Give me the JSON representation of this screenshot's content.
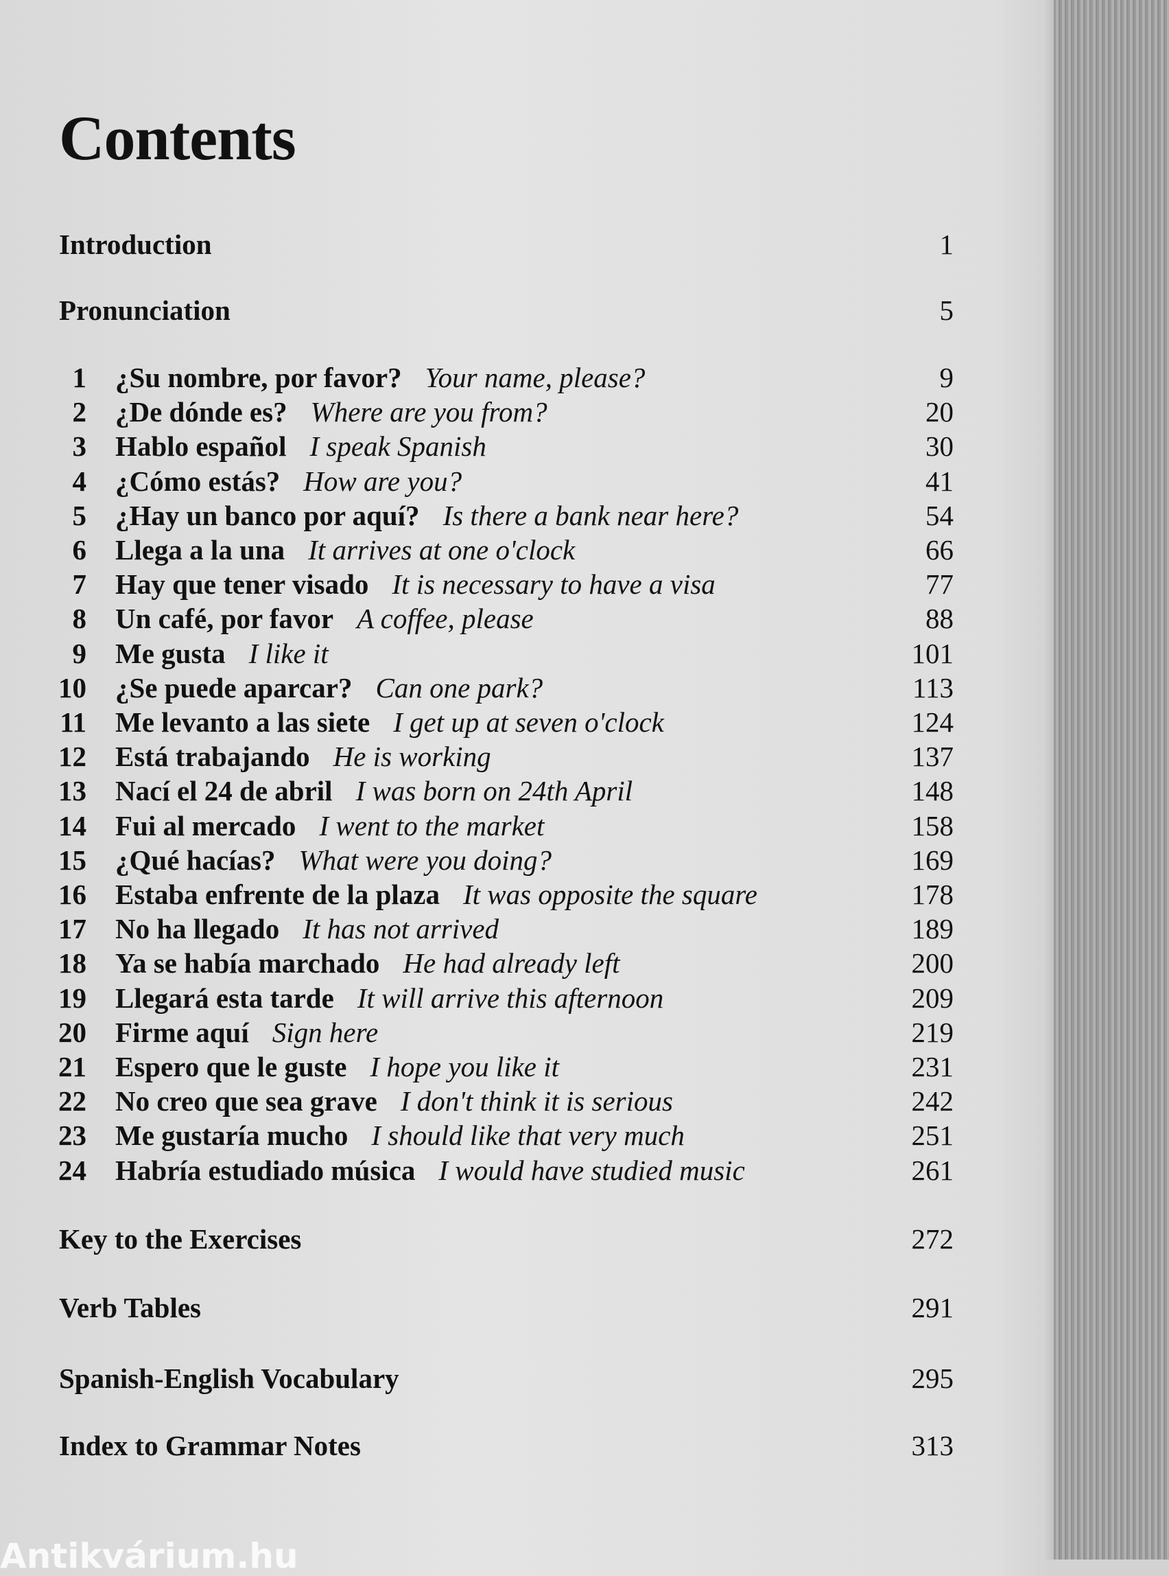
{
  "title": "Contents",
  "front_sections": [
    {
      "label": "Introduction",
      "page": "1"
    },
    {
      "label": "Pronunciation",
      "page": "5"
    }
  ],
  "chapters": [
    {
      "num": "1",
      "es": "¿Su nombre, por favor?",
      "en": "Your name, please?",
      "page": "9"
    },
    {
      "num": "2",
      "es": "¿De dónde es?",
      "en": "Where are you from?",
      "page": "20"
    },
    {
      "num": "3",
      "es": "Hablo español",
      "en": "I speak Spanish",
      "page": "30"
    },
    {
      "num": "4",
      "es": "¿Cómo estás?",
      "en": "How are you?",
      "page": "41"
    },
    {
      "num": "5",
      "es": "¿Hay un banco por aquí?",
      "en": "Is there a bank near here?",
      "page": "54"
    },
    {
      "num": "6",
      "es": "Llega a la una",
      "en": "It arrives at one o'clock",
      "page": "66"
    },
    {
      "num": "7",
      "es": "Hay que tener visado",
      "en": "It is necessary to have a visa",
      "page": "77"
    },
    {
      "num": "8",
      "es": "Un café, por favor",
      "en": "A coffee, please",
      "page": "88"
    },
    {
      "num": "9",
      "es": "Me gusta",
      "en": "I like it",
      "page": "101"
    },
    {
      "num": "10",
      "es": "¿Se puede aparcar?",
      "en": "Can one park?",
      "page": "113"
    },
    {
      "num": "11",
      "es": "Me levanto a las siete",
      "en": "I get up at seven o'clock",
      "page": "124"
    },
    {
      "num": "12",
      "es": "Está trabajando",
      "en": "He is working",
      "page": "137"
    },
    {
      "num": "13",
      "es": "Nací el 24 de abril",
      "en": "I was born on 24th April",
      "page": "148"
    },
    {
      "num": "14",
      "es": "Fui al mercado",
      "en": "I went to the market",
      "page": "158"
    },
    {
      "num": "15",
      "es": "¿Qué hacías?",
      "en": "What were you doing?",
      "page": "169"
    },
    {
      "num": "16",
      "es": "Estaba enfrente de la plaza",
      "en": "It was opposite the square",
      "page": "178"
    },
    {
      "num": "17",
      "es": "No ha llegado",
      "en": "It has not arrived",
      "page": "189"
    },
    {
      "num": "18",
      "es": "Ya se había marchado",
      "en": "He had already left",
      "page": "200"
    },
    {
      "num": "19",
      "es": "Llegará esta tarde",
      "en": "It will arrive this afternoon",
      "page": "209"
    },
    {
      "num": "20",
      "es": "Firme aquí",
      "en": "Sign here",
      "page": "219"
    },
    {
      "num": "21",
      "es": "Espero que le guste",
      "en": "I hope you like it",
      "page": "231"
    },
    {
      "num": "22",
      "es": "No creo que sea grave",
      "en": "I don't think it is serious",
      "page": "242"
    },
    {
      "num": "23",
      "es": "Me gustaría mucho",
      "en": "I should like that very much",
      "page": "251"
    },
    {
      "num": "24",
      "es": "Habría estudiado música",
      "en": "I would have studied music",
      "page": "261"
    }
  ],
  "back_sections": [
    {
      "label": "Key to the Exercises",
      "page": "272"
    },
    {
      "label": "Verb Tables",
      "page": "291"
    },
    {
      "label": "Spanish-English Vocabulary",
      "page": "295"
    },
    {
      "label": "Index to Grammar Notes",
      "page": "313"
    }
  ],
  "watermark": "Antikvárium.hu"
}
